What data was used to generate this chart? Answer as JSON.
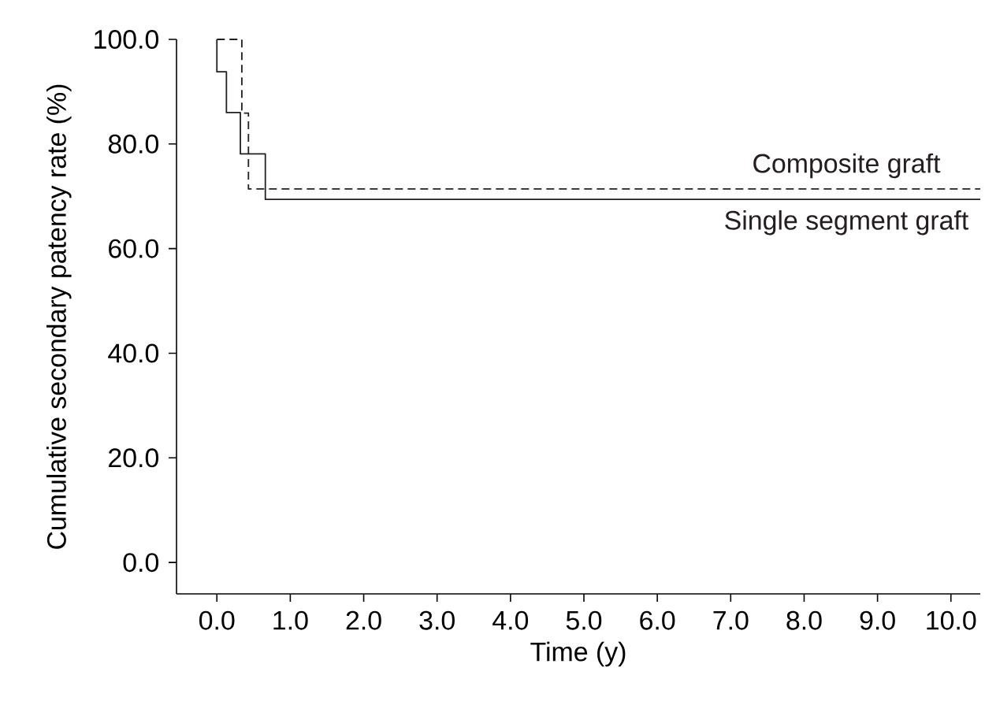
{
  "chart_data": {
    "type": "step",
    "xlabel": "Time (y)",
    "ylabel": "Cumulative secondary patency rate (%)",
    "xlim": [
      -0.55,
      10.4
    ],
    "ylim": [
      -6,
      100
    ],
    "xticks": [
      {
        "value": 0,
        "label": "0.0"
      },
      {
        "value": 1,
        "label": "1.0"
      },
      {
        "value": 2,
        "label": "2.0"
      },
      {
        "value": 3,
        "label": "3.0"
      },
      {
        "value": 4,
        "label": "4.0"
      },
      {
        "value": 5,
        "label": "5.0"
      },
      {
        "value": 6,
        "label": "6.0"
      },
      {
        "value": 7,
        "label": "7.0"
      },
      {
        "value": 8,
        "label": "8.0"
      },
      {
        "value": 9,
        "label": "9.0"
      },
      {
        "value": 10,
        "label": "10.0"
      }
    ],
    "yticks": [
      {
        "value": 0,
        "label": "0.0"
      },
      {
        "value": 20,
        "label": "20.0"
      },
      {
        "value": 40,
        "label": "40.0"
      },
      {
        "value": 60,
        "label": "60.0"
      },
      {
        "value": 80,
        "label": "80.0"
      },
      {
        "value": 100,
        "label": "100.0"
      }
    ],
    "grid": false,
    "marker": "none",
    "series": [
      {
        "name": "Composite graft",
        "color": "#231f20",
        "line_style": "dashed",
        "x": [
          0,
          0.34,
          0.43,
          10.4
        ],
        "values": [
          100,
          85.9,
          71.4,
          71.4
        ]
      },
      {
        "name": "Single segment graft",
        "color": "#231f20",
        "line_style": "solid",
        "x": [
          0,
          0,
          0.13,
          0.32,
          0.66,
          10.4
        ],
        "values": [
          100,
          93.8,
          86.0,
          78.1,
          69.4,
          69.4
        ]
      }
    ]
  }
}
